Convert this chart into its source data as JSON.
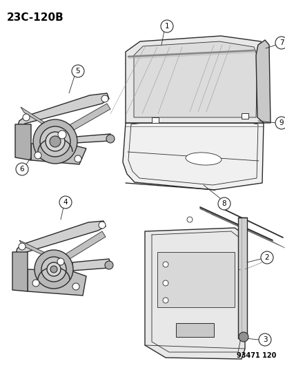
{
  "title_code": "23C-120B",
  "diagram_number": "93471 120",
  "background_color": "#ffffff",
  "line_color": "#2a2a2a",
  "label_color": "#000000",
  "fig_width": 4.14,
  "fig_height": 5.33,
  "dpi": 100,
  "circle_r": 0.018,
  "label_fs": 7.5,
  "title_fs": 11
}
